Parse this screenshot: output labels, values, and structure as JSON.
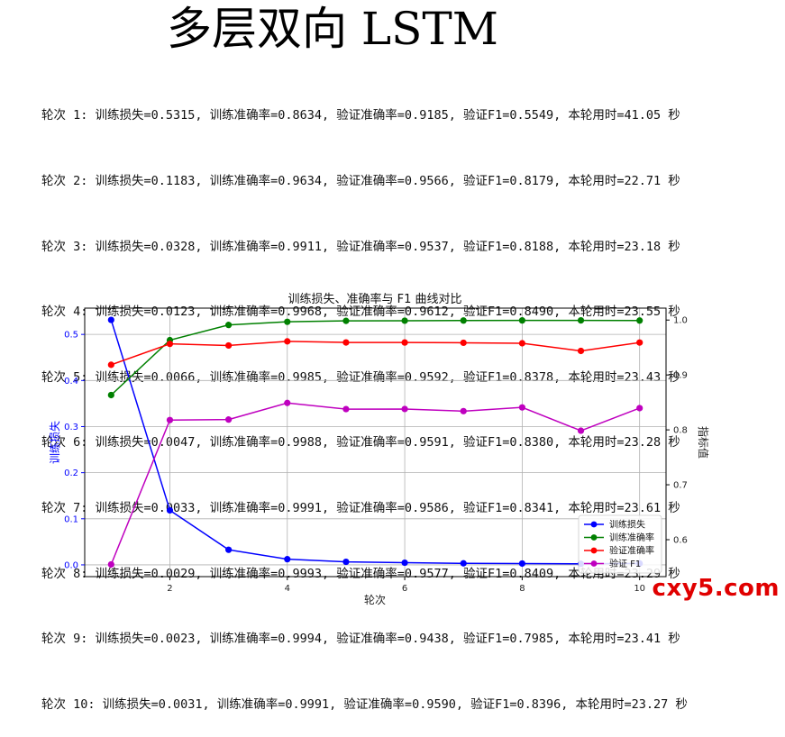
{
  "heading": "多层双向 LSTM",
  "log_lines": [
    "轮次 1: 训练损失=0.5315, 训练准确率=0.8634, 验证准确率=0.9185, 验证F1=0.5549, 本轮用时=41.05 秒",
    "轮次 2: 训练损失=0.1183, 训练准确率=0.9634, 验证准确率=0.9566, 验证F1=0.8179, 本轮用时=22.71 秒",
    "轮次 3: 训练损失=0.0328, 训练准确率=0.9911, 验证准确率=0.9537, 验证F1=0.8188, 本轮用时=23.18 秒",
    "轮次 4: 训练损失=0.0123, 训练准确率=0.9968, 验证准确率=0.9612, 验证F1=0.8490, 本轮用时=23.55 秒",
    "轮次 5: 训练损失=0.0066, 训练准确率=0.9985, 验证准确率=0.9592, 验证F1=0.8378, 本轮用时=23.43 秒",
    "轮次 6: 训练损失=0.0047, 训练准确率=0.9988, 验证准确率=0.9591, 验证F1=0.8380, 本轮用时=23.28 秒",
    "轮次 7: 训练损失=0.0033, 训练准确率=0.9991, 验证准确率=0.9586, 验证F1=0.8341, 本轮用时=23.61 秒",
    "轮次 8: 训练损失=0.0029, 训练准确率=0.9993, 验证准确率=0.9577, 验证F1=0.8409, 本轮用时=23.29 秒",
    "轮次 9: 训练损失=0.0023, 训练准确率=0.9994, 验证准确率=0.9438, 验证F1=0.7985, 本轮用时=23.41 秒",
    "轮次 10: 训练损失=0.0031, 训练准确率=0.9991, 验证准确率=0.9590, 验证F1=0.8396, 本轮用时=23.27 秒"
  ],
  "watermark": "cxy5.com",
  "chart_data": {
    "type": "line",
    "title": "训练损失、准确率与 F1 曲线对比",
    "xlabel": "轮次",
    "ylabel_left": "训练损失",
    "ylabel_right": "指标值",
    "x": [
      1,
      2,
      3,
      4,
      5,
      6,
      7,
      8,
      9,
      10
    ],
    "x_ticks": [
      2,
      4,
      6,
      8,
      10
    ],
    "ylim_left": [
      -0.0255,
      0.557
    ],
    "yticks_left": [
      0.0,
      0.1,
      0.2,
      0.3,
      0.4,
      0.5
    ],
    "ylim_right": [
      0.5327,
      1.0217
    ],
    "yticks_right": [
      0.6,
      0.7,
      0.8,
      0.9,
      1.0
    ],
    "grid": true,
    "legend_position": "lower-right",
    "series": [
      {
        "name": "训练损失",
        "axis": "left",
        "color": "#0000ff",
        "values": [
          0.5315,
          0.1183,
          0.0328,
          0.0123,
          0.0066,
          0.0047,
          0.0033,
          0.0029,
          0.0023,
          0.0031
        ]
      },
      {
        "name": "训练准确率",
        "axis": "right",
        "color": "#008000",
        "values": [
          0.8634,
          0.9634,
          0.9911,
          0.9968,
          0.9985,
          0.9988,
          0.9991,
          0.9993,
          0.9994,
          0.9991
        ]
      },
      {
        "name": "验证准确率",
        "axis": "right",
        "color": "#ff0000",
        "values": [
          0.9185,
          0.9566,
          0.9537,
          0.9612,
          0.9592,
          0.9591,
          0.9586,
          0.9577,
          0.9438,
          0.959
        ]
      },
      {
        "name": "验证 F1",
        "axis": "right",
        "color": "#bf00bf",
        "values": [
          0.5549,
          0.8179,
          0.8188,
          0.849,
          0.8378,
          0.838,
          0.8341,
          0.8409,
          0.7985,
          0.8396
        ]
      }
    ]
  }
}
